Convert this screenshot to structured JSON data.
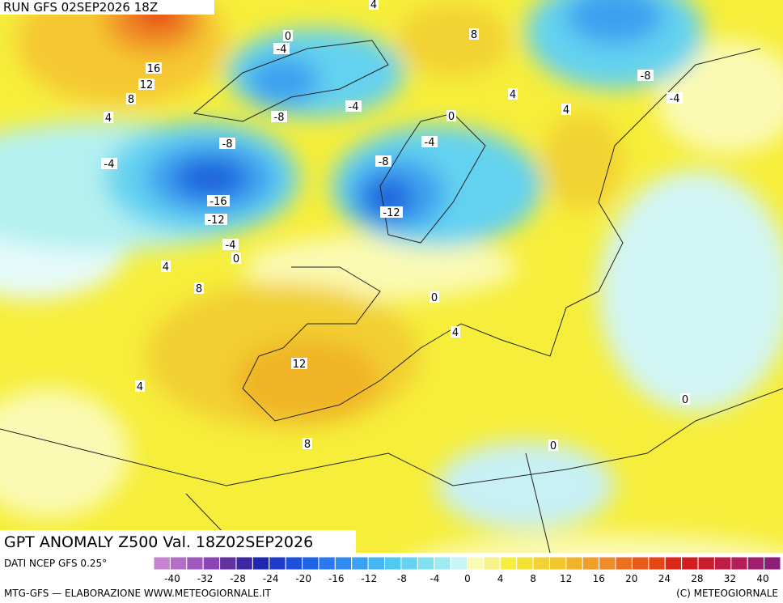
{
  "header": {
    "run": "RUN GFS 02SEP2026 18Z"
  },
  "map": {
    "title": "GPT ANOMALY Z500 Val. 18Z02SEP2026",
    "contour_labels": [
      0,
      -4,
      16,
      12,
      8,
      4,
      -8,
      -4,
      8,
      4,
      4,
      4,
      -8,
      -4,
      0,
      -4,
      -8,
      -4,
      -8,
      -16,
      -12,
      -12,
      -4,
      0,
      4,
      8,
      0,
      4,
      12,
      4,
      0,
      8,
      0
    ]
  },
  "legend": {
    "source": "DATI NCEP GFS 0.25°",
    "labels": [
      -40,
      -32,
      -28,
      -24,
      -20,
      -16,
      -12,
      -8,
      -4,
      0,
      4,
      8,
      12,
      16,
      20,
      24,
      28,
      32,
      40
    ]
  },
  "footer": {
    "left": "MTG-GFS — ELABORAZIONE WWW.METEOGIORNALE.IT",
    "right": "(C) METEOGIORNALE"
  }
}
